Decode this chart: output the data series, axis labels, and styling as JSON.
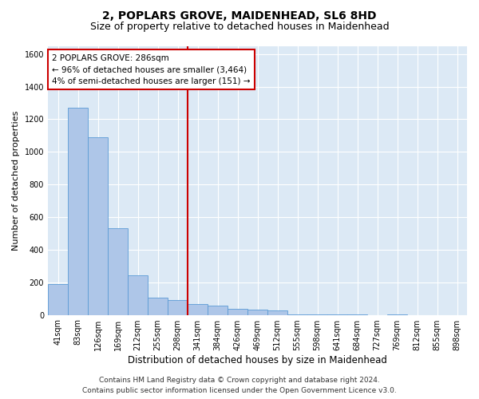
{
  "title": "2, POPLARS GROVE, MAIDENHEAD, SL6 8HD",
  "subtitle": "Size of property relative to detached houses in Maidenhead",
  "xlabel": "Distribution of detached houses by size in Maidenhead",
  "ylabel": "Number of detached properties",
  "categories": [
    "41sqm",
    "83sqm",
    "126sqm",
    "169sqm",
    "212sqm",
    "255sqm",
    "298sqm",
    "341sqm",
    "384sqm",
    "426sqm",
    "469sqm",
    "512sqm",
    "555sqm",
    "598sqm",
    "641sqm",
    "684sqm",
    "727sqm",
    "769sqm",
    "812sqm",
    "855sqm",
    "898sqm"
  ],
  "values": [
    190,
    1270,
    1090,
    530,
    245,
    105,
    90,
    65,
    55,
    35,
    30,
    25,
    5,
    5,
    5,
    5,
    0,
    5,
    0,
    0,
    0
  ],
  "bar_color": "#aec6e8",
  "bar_edge_color": "#5b9bd5",
  "property_line_x": 6.5,
  "annotation_text_line1": "2 POPLARS GROVE: 286sqm",
  "annotation_text_line2": "← 96% of detached houses are smaller (3,464)",
  "annotation_text_line3": "4% of semi-detached houses are larger (151) →",
  "annotation_box_color": "#ffffff",
  "annotation_box_edge_color": "#cc0000",
  "vline_color": "#cc0000",
  "ylim": [
    0,
    1650
  ],
  "yticks": [
    0,
    200,
    400,
    600,
    800,
    1000,
    1200,
    1400,
    1600
  ],
  "plot_bg_color": "#dce9f5",
  "footer_line1": "Contains HM Land Registry data © Crown copyright and database right 2024.",
  "footer_line2": "Contains public sector information licensed under the Open Government Licence v3.0.",
  "title_fontsize": 10,
  "subtitle_fontsize": 9,
  "xlabel_fontsize": 8.5,
  "ylabel_fontsize": 8,
  "tick_fontsize": 7,
  "footer_fontsize": 6.5,
  "annotation_fontsize": 7.5
}
